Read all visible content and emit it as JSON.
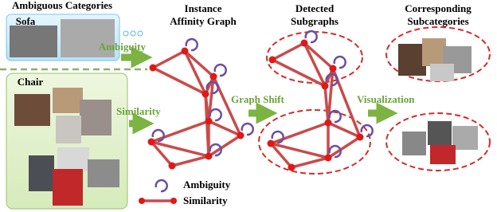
{
  "left_panel": {
    "title": "Ambiguous Categories",
    "sofa": "Sofa",
    "chair": "Chair"
  },
  "arrows": {
    "ambiguity": "Ambiguity",
    "similarity": "Similarity",
    "graph_shift": "Graph Shift",
    "visualization": "Visualization"
  },
  "columns": [
    {
      "title_lines": [
        "Instance",
        "Affinity Graph"
      ]
    },
    {
      "title_lines": [
        "Detected",
        "Subgraphs"
      ]
    },
    {
      "title_lines": [
        "Corresponding",
        "Subcategories"
      ]
    }
  ],
  "legend": {
    "ambiguity": "Ambiguity",
    "similarity": "Similarity"
  }
}
